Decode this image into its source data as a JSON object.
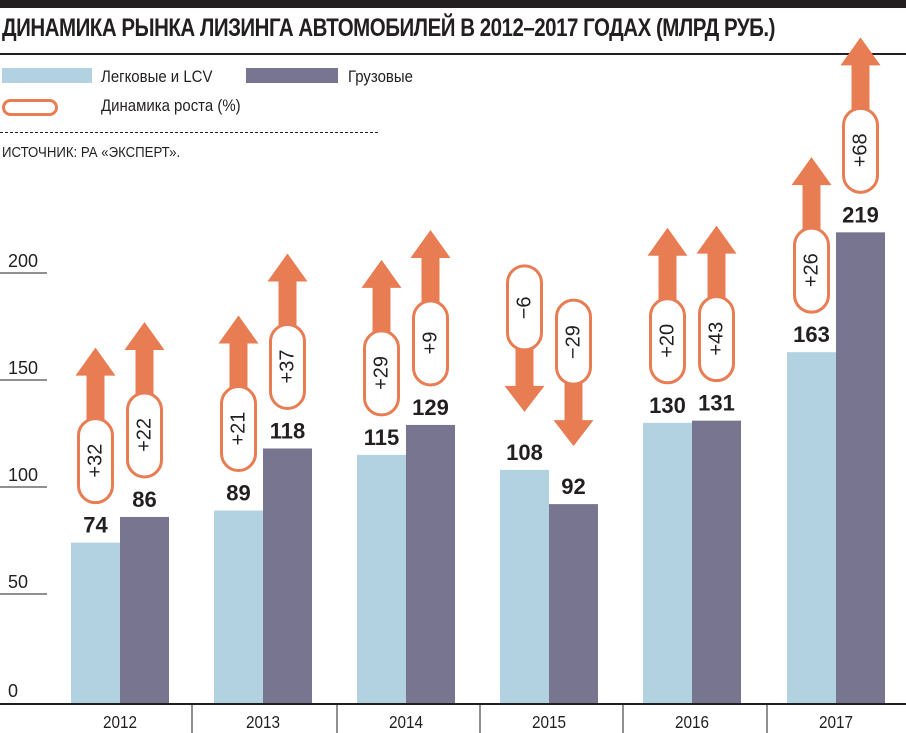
{
  "header": {
    "title": "ДИНАМИКА РЫНКА ЛИЗИНГА АВТОМОБИЛЕЙ В 2012–2017 ГОДАХ (МЛРД РУБ.)"
  },
  "legend": {
    "items": [
      {
        "label": "Легковые и LCV",
        "color": "#b3d2e1"
      },
      {
        "label": "Грузовые",
        "color": "#77758f"
      },
      {
        "label": "Динамика роста (%)",
        "color": "#e87c52"
      }
    ]
  },
  "source": "ИСТОЧНИК: РА «ЭКСПЕРТ».",
  "chart_data": {
    "type": "bar",
    "title": "ДИНАМИКА РЫНКА ЛИЗИНГА АВТОМОБИЛЕЙ В 2012–2017 ГОДАХ (МЛРД РУБ.)",
    "xlabel": "",
    "ylabel": "млрд руб.",
    "ylim": [
      0,
      200
    ],
    "yticks": [
      0,
      50,
      100,
      150,
      200
    ],
    "grid": false,
    "legend_position": "top-left",
    "categories": [
      "2012",
      "2013",
      "2014",
      "2015",
      "2016",
      "2017"
    ],
    "series": [
      {
        "name": "Легковые и LCV",
        "color": "#b3d2e1",
        "values": [
          74,
          89,
          115,
          108,
          130,
          163
        ],
        "growth_pct": [
          "+32",
          "+21",
          "+29",
          "−6",
          "+20",
          "+26"
        ]
      },
      {
        "name": "Грузовые",
        "color": "#77758f",
        "values": [
          86,
          118,
          129,
          92,
          131,
          219
        ],
        "growth_pct": [
          "+22",
          "+37",
          "+9",
          "−29",
          "+43",
          "+68"
        ]
      }
    ],
    "annotation_series": "Динамика роста (%)",
    "annotation_color": "#e87c52"
  }
}
